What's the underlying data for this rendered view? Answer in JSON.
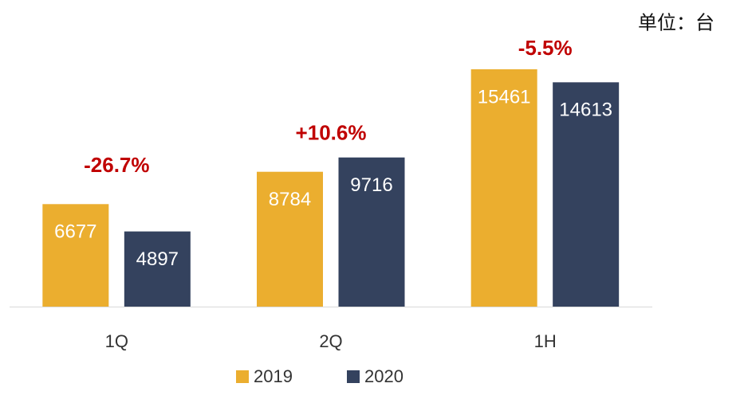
{
  "chart_data": {
    "type": "bar",
    "unit_label": "单位：台",
    "categories": [
      "1Q",
      "2Q",
      "1H"
    ],
    "series": [
      {
        "name": "2019",
        "color": "#EBAE2F",
        "values": [
          6677,
          8784,
          15461
        ]
      },
      {
        "name": "2020",
        "color": "#34425E",
        "values": [
          4897,
          9716,
          14613
        ]
      }
    ],
    "annotations": [
      "-26.7%",
      "+10.6%",
      "-5.5%"
    ],
    "annotation_color": "#C00000"
  }
}
